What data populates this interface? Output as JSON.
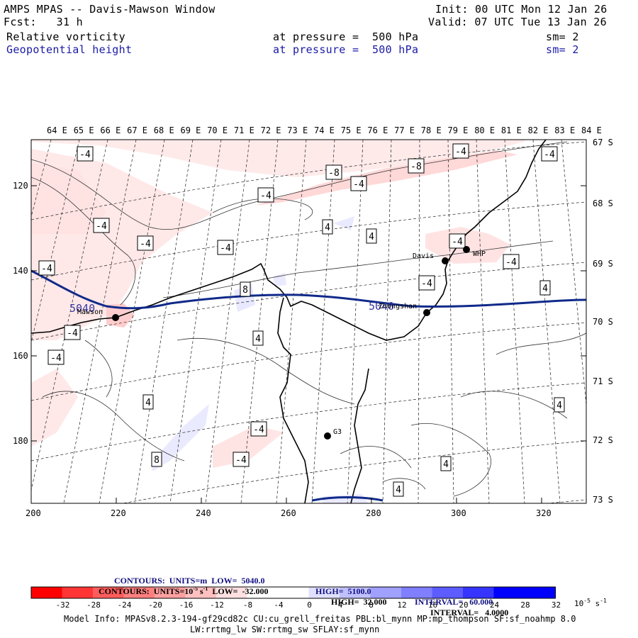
{
  "header": {
    "title": "AMPS MPAS -- Davis-Mawson Window",
    "fcst": "Fcst:   31 h",
    "init": "Init: 00 UTC Mon 12 Jan 26",
    "valid": "Valid: 07 UTC Tue 13 Jan 26",
    "field1": {
      "name": "Relative vorticity",
      "level": "at pressure =  500 hPa",
      "sm": "sm= 2"
    },
    "field2": {
      "name": "Geopotential height",
      "level": "at pressure =  500 hPa",
      "sm": "sm= 2"
    }
  },
  "map": {
    "lon_labels": [
      "64 E",
      "65 E",
      "66 E",
      "67 E",
      "68 E",
      "69 E",
      "70 E",
      "71 E",
      "72 E",
      "73 E",
      "74 E",
      "75 E",
      "76 E",
      "77 E",
      "78 E",
      "79 E",
      "80 E",
      "81 E",
      "82 E",
      "83 E",
      "84 E"
    ],
    "lat_labels": [
      "67 S",
      "68 S",
      "69 S",
      "70 S",
      "71 S",
      "72 S",
      "73 S"
    ],
    "y_ticks": [
      "120",
      "140",
      "160",
      "180"
    ],
    "x_ticks": [
      "200",
      "220",
      "240",
      "260",
      "280",
      "300",
      "320"
    ],
    "height_contour_label": "5040",
    "vort_labels": [
      {
        "t": "-4",
        "x": 120,
        "y": 217
      },
      {
        "t": "-8",
        "x": 471,
        "y": 243
      },
      {
        "t": "-8",
        "x": 587,
        "y": 234
      },
      {
        "t": "-4",
        "x": 506,
        "y": 259
      },
      {
        "t": "-4",
        "x": 650,
        "y": 213
      },
      {
        "t": "-4",
        "x": 775,
        "y": 217
      },
      {
        "t": "-4",
        "x": 375,
        "y": 275
      },
      {
        "t": "-4",
        "x": 143,
        "y": 318
      },
      {
        "t": "4",
        "x": 462,
        "y": 320
      },
      {
        "t": "4",
        "x": 524,
        "y": 333
      },
      {
        "t": "-4",
        "x": 205,
        "y": 343
      },
      {
        "t": "-4",
        "x": 318,
        "y": 349
      },
      {
        "t": "-4",
        "x": 645,
        "y": 340
      },
      {
        "t": "-4",
        "x": 66,
        "y": 378
      },
      {
        "t": "-4",
        "x": 721,
        "y": 369
      },
      {
        "t": "-4",
        "x": 602,
        "y": 399
      },
      {
        "t": "4",
        "x": 769,
        "y": 406
      },
      {
        "t": "8",
        "x": 346,
        "y": 408
      },
      {
        "t": "-4",
        "x": 102,
        "y": 469
      },
      {
        "t": "4",
        "x": 364,
        "y": 477
      },
      {
        "t": "-4",
        "x": 79,
        "y": 504
      },
      {
        "t": "4",
        "x": 209,
        "y": 567
      },
      {
        "t": "4",
        "x": 789,
        "y": 571
      },
      {
        "t": "-4",
        "x": 365,
        "y": 605
      },
      {
        "t": "-4",
        "x": 340,
        "y": 648
      },
      {
        "t": "8",
        "x": 221,
        "y": 648
      },
      {
        "t": "4",
        "x": 629,
        "y": 654
      },
      {
        "t": "4",
        "x": 562,
        "y": 690
      }
    ],
    "stations": [
      {
        "name": "Davis",
        "dot": [
          628,
          368
        ]
      },
      {
        "name": "WHP",
        "dot": [
          658,
          352
        ]
      },
      {
        "name": "Mawson",
        "dot": [
          163,
          448
        ]
      },
      {
        "name": "Zhongshan",
        "dot": [
          602,
          441
        ]
      },
      {
        "name": "G3",
        "dot": [
          462,
          615
        ]
      }
    ]
  },
  "contours_info": {
    "line1": {
      "label": "CONTOURS:  UNITS=m  LOW=  5040.0",
      "high": "HIGH=  5100.0",
      "interval": "INTERVAL=   60.000"
    },
    "line2": {
      "label": "CONTOURS:  UNITS=10",
      "exp": "-5",
      "unit": " s",
      "uexp": "-1",
      "low": "  LOW=  -32.000",
      "high": "HIGH=  32.000",
      "interval": "INTERVAL=   4.0000"
    }
  },
  "colorbar": {
    "colors": [
      "#ff0000",
      "#ff3535",
      "#ff5c5c",
      "#ff7f7f",
      "#ffa0a0",
      "#ffc0c0",
      "#ffe0e0",
      "#ffffff",
      "#ffffff",
      "#e0e0ff",
      "#c0c0ff",
      "#a0a0ff",
      "#7f7fff",
      "#5c5cff",
      "#3535ff",
      "#0000ff",
      "#0000ff"
    ],
    "labels": [
      "-32",
      "-28",
      "-24",
      "-20",
      "-16",
      "-12",
      "-8",
      "-4",
      "0",
      "4",
      "8",
      "12",
      "16",
      "20",
      "24",
      "28",
      "32"
    ],
    "unit": "10",
    "unit_exp": "-5",
    "unit_s": " s",
    "unit_s_exp": "-1"
  },
  "model_info": {
    "line1": "Model Info: MPASv8.2.3-194-gf29cd82c CU:cu_grell_freitas PBL:bl_mynn MP:mp_thompson SF:sf_noahmp 8.0",
    "line2": "LW:rrtmg_lw SW:rrtmg_sw SFLAY:sf_mynn"
  }
}
